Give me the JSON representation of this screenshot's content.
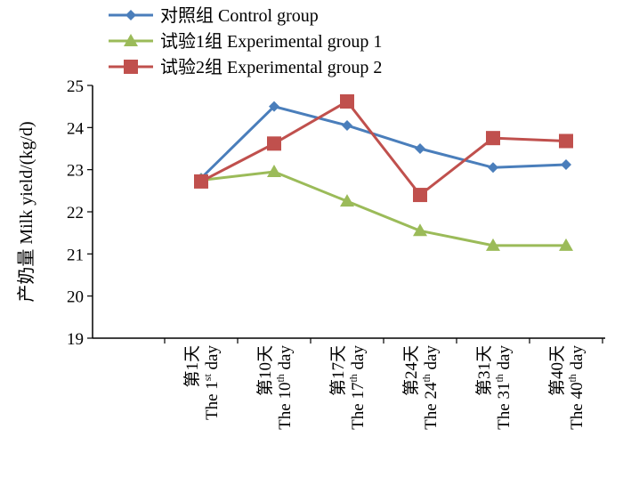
{
  "chart_data": {
    "type": "line",
    "ylabel": "产奶量 Milk yield/(kg/d)",
    "ylim": [
      19,
      25
    ],
    "yticks": [
      19,
      20,
      21,
      22,
      23,
      24,
      25
    ],
    "grid": false,
    "legend_placement": "top",
    "categories": [
      {
        "cn": "第1天",
        "en": "The 1",
        "sup": "st",
        "suffix": " day"
      },
      {
        "cn": "第10天",
        "en": "10",
        "sup": "th",
        "suffix": " day"
      },
      {
        "cn": "第17天",
        "en": "17",
        "sup": "th",
        "suffix": " day"
      },
      {
        "cn": "第24天",
        "en": "24",
        "sup": "th",
        "suffix": " day"
      },
      {
        "cn": "第31天",
        "en": "31",
        "sup": "th",
        "suffix": " day"
      },
      {
        "cn": "第40天",
        "en": "40",
        "sup": "th",
        "suffix": " day"
      }
    ],
    "category_prefix_lines": [
      "",
      "The",
      "The",
      "The",
      "The",
      "The"
    ],
    "series": [
      {
        "name": "对照组  Control group",
        "color": "#4a7ebb",
        "marker": "diamond",
        "values": [
          22.8,
          24.5,
          24.05,
          23.5,
          23.05,
          23.12
        ]
      },
      {
        "name": "试验1组  Experimental group 1",
        "color": "#9bbb59",
        "marker": "triangle",
        "values": [
          22.75,
          22.95,
          22.25,
          21.55,
          21.2,
          21.2
        ]
      },
      {
        "name": "试验2组  Experimental group 2",
        "color": "#c0504d",
        "marker": "square",
        "values": [
          22.72,
          23.62,
          24.62,
          22.4,
          23.75,
          23.68
        ]
      }
    ]
  }
}
